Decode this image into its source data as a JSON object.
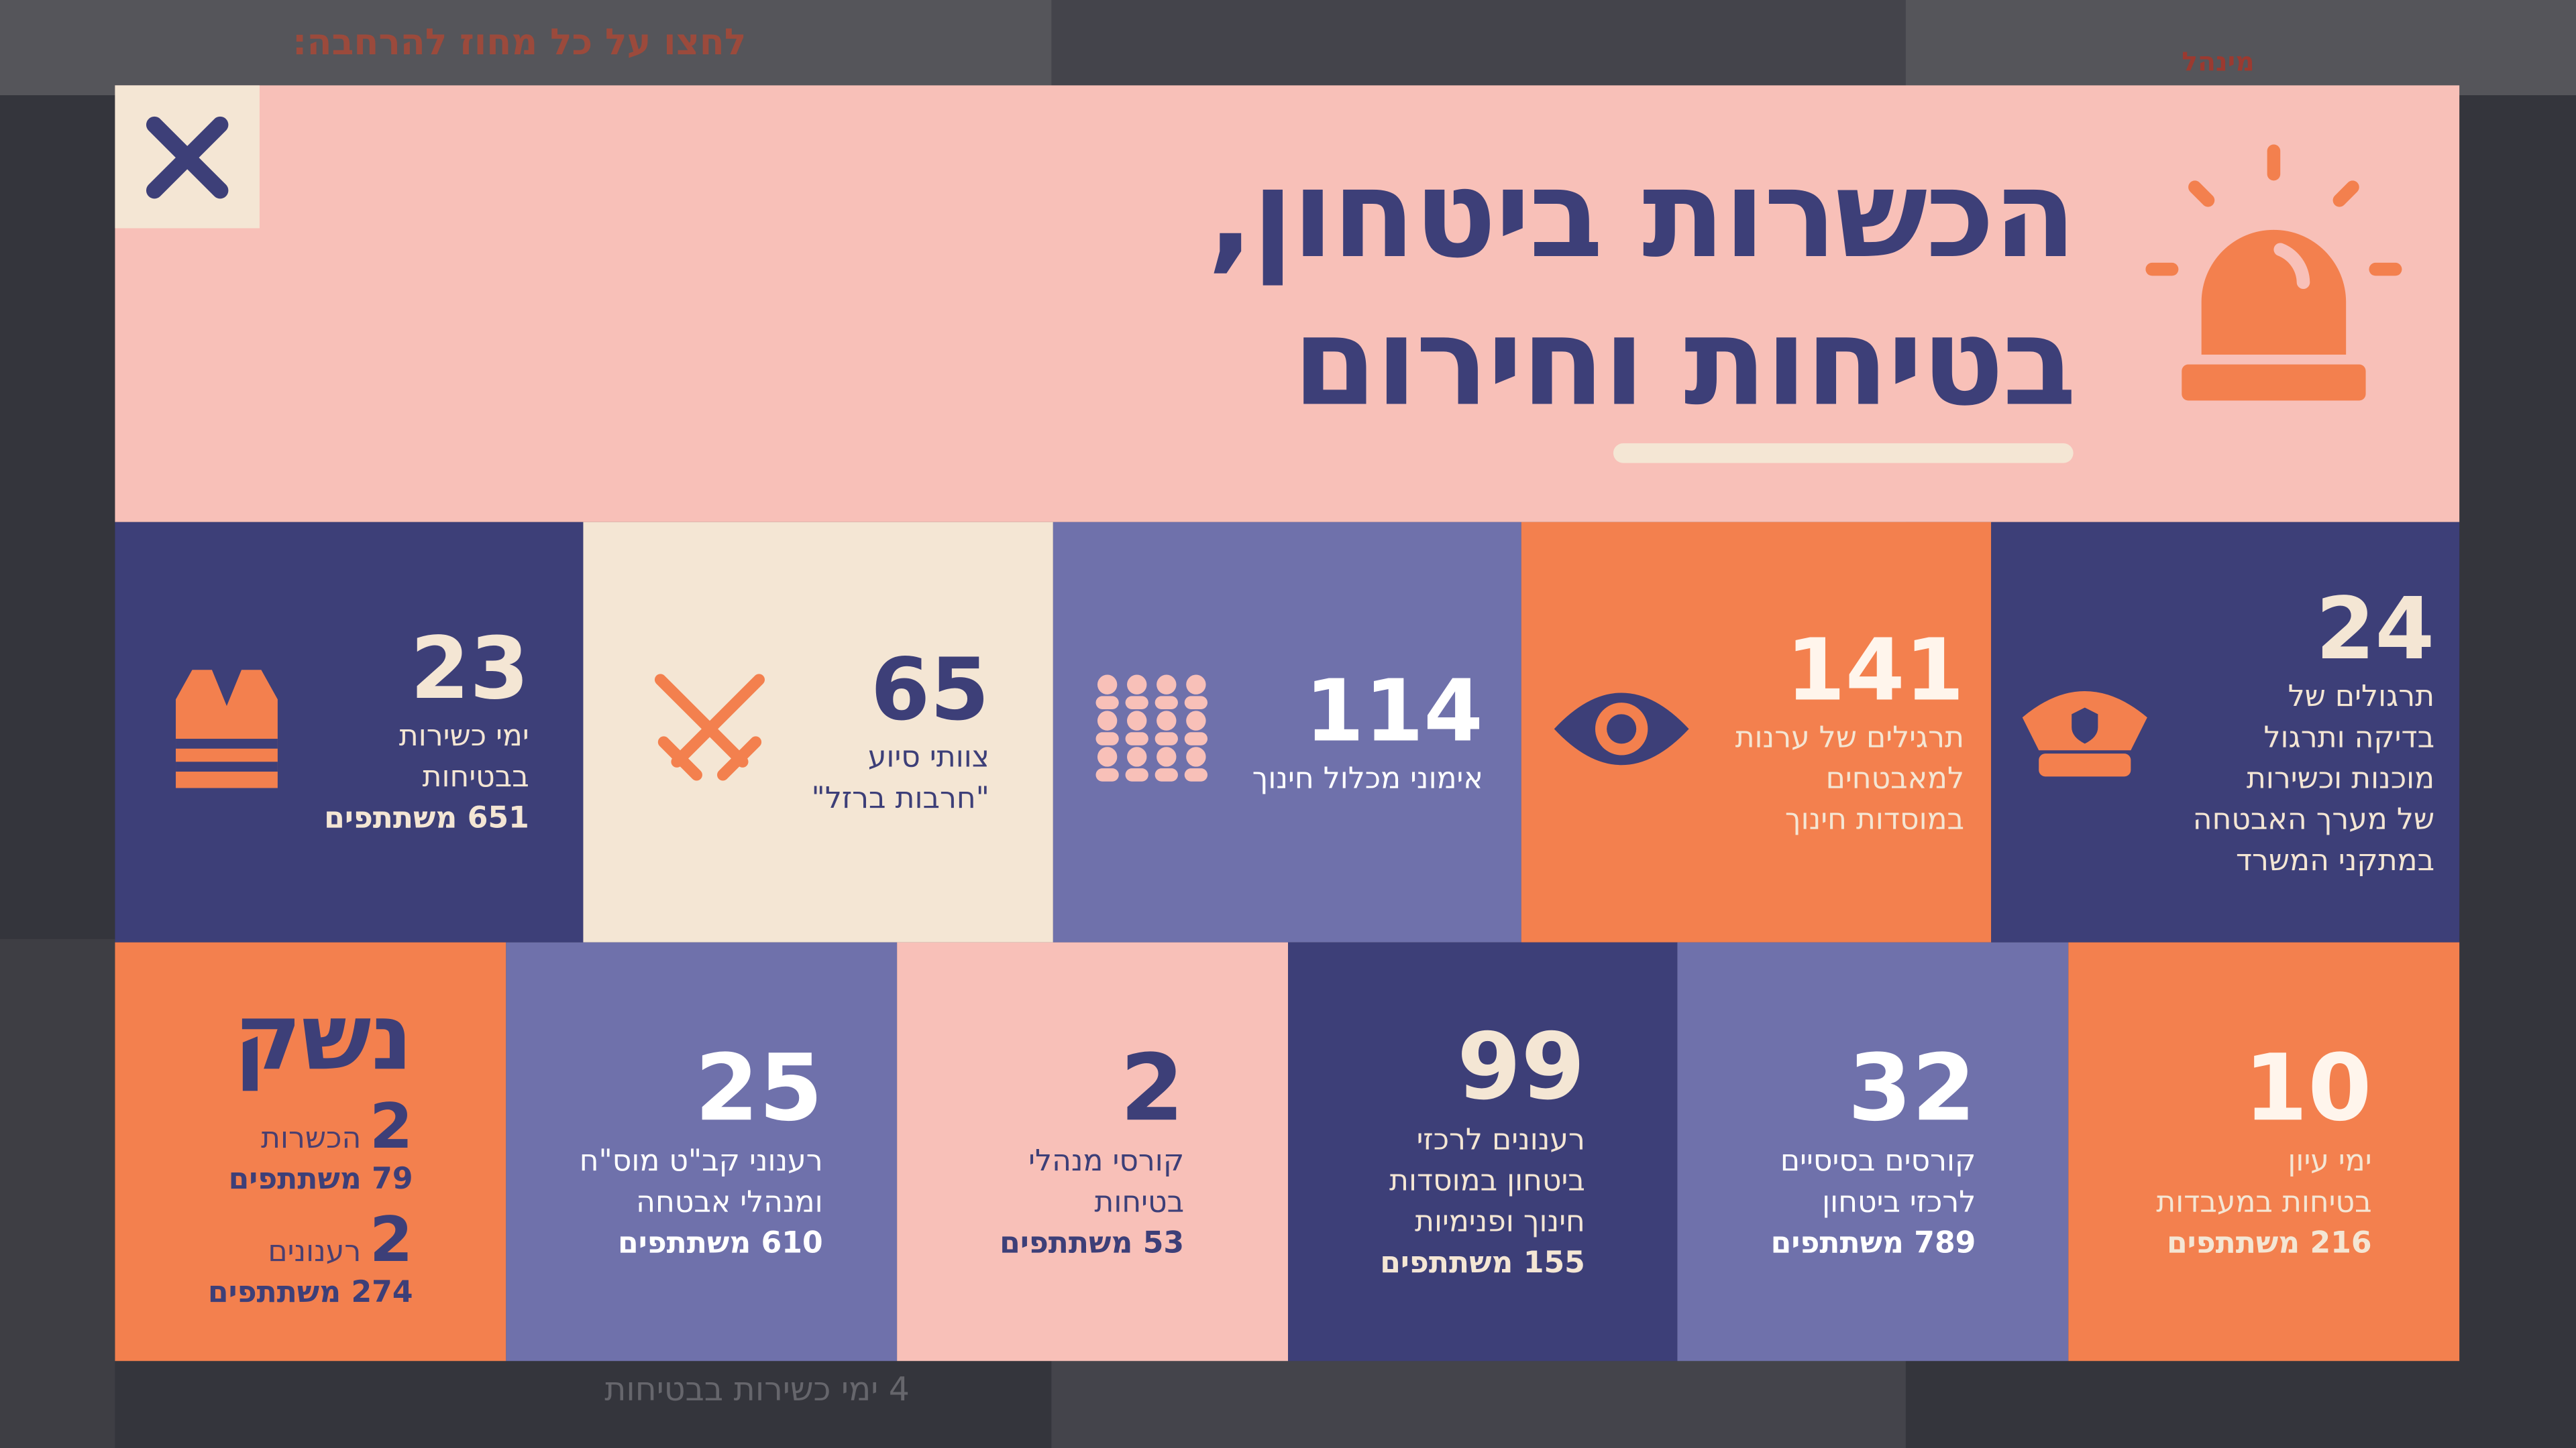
{
  "background": {
    "hint": "לחצו על כל מחוז להרחבה:",
    "org": "מינהל",
    "footer": "4 ימי כשירות בבטיחות"
  },
  "modal": {
    "title_lines": [
      "הכשרות ביטחון,",
      "בטיחות וחירום"
    ],
    "row1": [
      {
        "number": "24",
        "lines": [
          "תרגולים של",
          "בדיקה ותרגול",
          "מוכנות וכשירות",
          "של מערך האבטחה",
          "במתקני המשרד"
        ]
      },
      {
        "number": "141",
        "lines": [
          "תרגילים של ערנות",
          "למאבטחים",
          "במוסדות חינוך"
        ]
      },
      {
        "number": "114",
        "lines": [
          "אימוני מכלול חינוך"
        ]
      },
      {
        "number": "65",
        "lines": [
          "צוותי סיוע",
          "\"חרבות ברזל\""
        ]
      },
      {
        "number": "23",
        "lines": [
          "ימי כשירות",
          "בבטיחות"
        ],
        "participants": "651 משתתפים"
      }
    ],
    "row2": [
      {
        "number": "10",
        "lines": [
          "ימי עיון",
          "בטיחות במעבדות"
        ],
        "participants": "216 משתתפים"
      },
      {
        "number": "32",
        "lines": [
          "קורסים בסיסיים",
          "לרכזי ביטחון"
        ],
        "participants": "789 משתתפים"
      },
      {
        "number": "99",
        "lines": [
          "רענונים לרכזי",
          "ביטחון במוסדות",
          "חינוך ופנימיות"
        ],
        "participants": "155 משתתפים"
      },
      {
        "number": "2",
        "lines": [
          "קורסי מנהלי",
          "בטיחות"
        ],
        "participants": "53 משתתפים"
      },
      {
        "number": "25",
        "lines": [
          "רענוני קב\"ט מוס\"ח",
          "ומנהלי אבטחה"
        ],
        "participants": "610 משתתפים"
      }
    ],
    "weapons": {
      "heading": "נשק",
      "items": [
        {
          "number": "2",
          "label": "הכשרות",
          "participants": "79 משתתפים"
        },
        {
          "number": "2",
          "label": "רענונים",
          "participants": "274 משתתפים"
        }
      ]
    }
  }
}
